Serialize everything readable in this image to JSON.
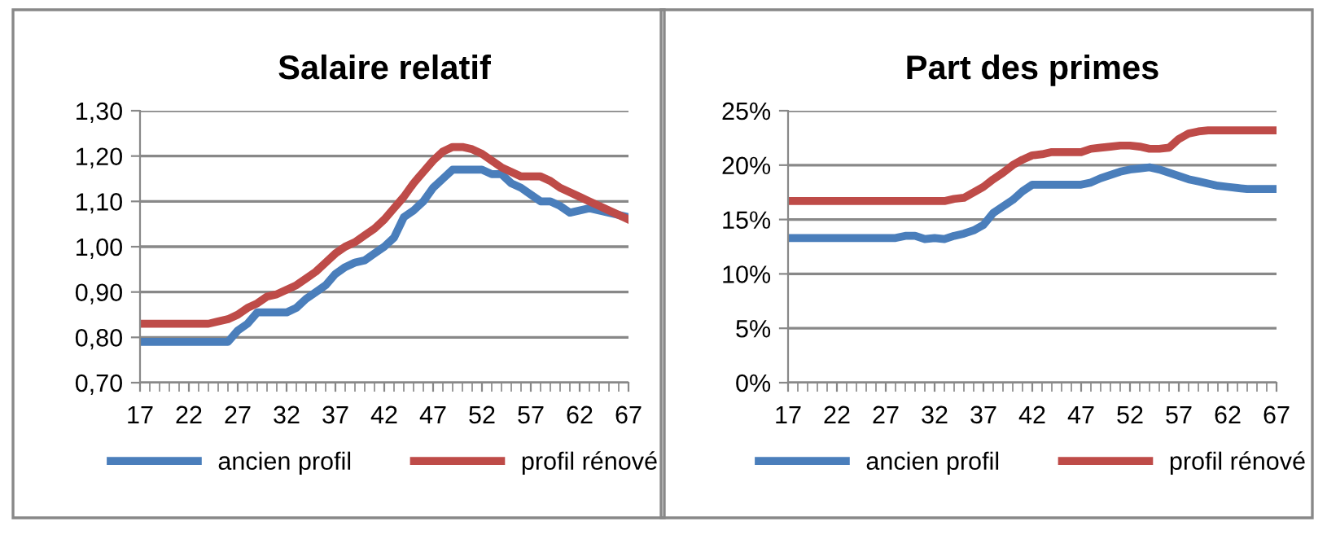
{
  "chart_data": [
    {
      "type": "line",
      "title": "Salaire relatif",
      "legend": "bottom",
      "grid": "y",
      "marker": "none",
      "line_style": "solid",
      "x": [
        17,
        18,
        19,
        20,
        21,
        22,
        23,
        24,
        25,
        26,
        27,
        28,
        29,
        30,
        31,
        32,
        33,
        34,
        35,
        36,
        37,
        38,
        39,
        40,
        41,
        42,
        43,
        44,
        45,
        46,
        47,
        48,
        49,
        50,
        51,
        52,
        53,
        54,
        55,
        56,
        57,
        58,
        59,
        60,
        61,
        62,
        63,
        64,
        65,
        66,
        67
      ],
      "xlim": [
        17,
        67
      ],
      "xticks": [
        17,
        22,
        27,
        32,
        37,
        42,
        47,
        52,
        57,
        62,
        67
      ],
      "ylim": [
        0.7,
        1.3
      ],
      "yticks": [
        {
          "value": 0.7,
          "label": "0,70"
        },
        {
          "value": 0.8,
          "label": "0,80"
        },
        {
          "value": 0.9,
          "label": "0,90"
        },
        {
          "value": 1.0,
          "label": "1,00"
        },
        {
          "value": 1.1,
          "label": "1,10"
        },
        {
          "value": 1.2,
          "label": "1,20"
        },
        {
          "value": 1.3,
          "label": "1,30"
        }
      ],
      "series": [
        {
          "name": "ancien profil",
          "color": "#4a7ebb",
          "values": [
            0.79,
            0.79,
            0.79,
            0.79,
            0.79,
            0.79,
            0.79,
            0.79,
            0.79,
            0.79,
            0.815,
            0.83,
            0.855,
            0.855,
            0.855,
            0.855,
            0.865,
            0.885,
            0.9,
            0.915,
            0.94,
            0.955,
            0.965,
            0.97,
            0.985,
            1.0,
            1.02,
            1.065,
            1.08,
            1.1,
            1.13,
            1.15,
            1.17,
            1.17,
            1.17,
            1.17,
            1.16,
            1.16,
            1.14,
            1.13,
            1.115,
            1.1,
            1.1,
            1.09,
            1.075,
            1.08,
            1.085,
            1.08,
            1.075,
            1.07,
            1.065
          ]
        },
        {
          "name": "profil rénové",
          "color": "#be4b48",
          "values": [
            0.83,
            0.83,
            0.83,
            0.83,
            0.83,
            0.83,
            0.83,
            0.83,
            0.835,
            0.84,
            0.85,
            0.865,
            0.875,
            0.89,
            0.895,
            0.905,
            0.915,
            0.93,
            0.945,
            0.965,
            0.985,
            1.0,
            1.01,
            1.025,
            1.04,
            1.06,
            1.085,
            1.11,
            1.14,
            1.165,
            1.19,
            1.21,
            1.22,
            1.22,
            1.215,
            1.205,
            1.19,
            1.175,
            1.165,
            1.155,
            1.155,
            1.155,
            1.145,
            1.13,
            1.12,
            1.11,
            1.1,
            1.09,
            1.08,
            1.07,
            1.06
          ]
        }
      ]
    },
    {
      "type": "line",
      "title": "Part des primes",
      "legend": "bottom",
      "grid": "y",
      "marker": "none",
      "line_style": "solid",
      "x": [
        17,
        18,
        19,
        20,
        21,
        22,
        23,
        24,
        25,
        26,
        27,
        28,
        29,
        30,
        31,
        32,
        33,
        34,
        35,
        36,
        37,
        38,
        39,
        40,
        41,
        42,
        43,
        44,
        45,
        46,
        47,
        48,
        49,
        50,
        51,
        52,
        53,
        54,
        55,
        56,
        57,
        58,
        59,
        60,
        61,
        62,
        63,
        64,
        65,
        66,
        67
      ],
      "xlim": [
        17,
        67
      ],
      "xticks": [
        17,
        22,
        27,
        32,
        37,
        42,
        47,
        52,
        57,
        62,
        67
      ],
      "ylim": [
        0,
        25
      ],
      "yticks": [
        {
          "value": 0,
          "label": "0%"
        },
        {
          "value": 5,
          "label": "5%"
        },
        {
          "value": 10,
          "label": "10%"
        },
        {
          "value": 15,
          "label": "15%"
        },
        {
          "value": 20,
          "label": "20%"
        },
        {
          "value": 25,
          "label": "25%"
        }
      ],
      "series": [
        {
          "name": "ancien profil",
          "color": "#4a7ebb",
          "values": [
            13.3,
            13.3,
            13.3,
            13.3,
            13.3,
            13.3,
            13.3,
            13.3,
            13.3,
            13.3,
            13.3,
            13.3,
            13.5,
            13.5,
            13.2,
            13.3,
            13.2,
            13.5,
            13.7,
            14.0,
            14.5,
            15.6,
            16.2,
            16.8,
            17.6,
            18.2,
            18.2,
            18.2,
            18.2,
            18.2,
            18.2,
            18.4,
            18.8,
            19.1,
            19.4,
            19.6,
            19.7,
            19.8,
            19.6,
            19.3,
            19.0,
            18.7,
            18.5,
            18.3,
            18.1,
            18.0,
            17.9,
            17.8,
            17.8,
            17.8,
            17.8
          ]
        },
        {
          "name": "profil rénové",
          "color": "#be4b48",
          "values": [
            16.7,
            16.7,
            16.7,
            16.7,
            16.7,
            16.7,
            16.7,
            16.7,
            16.7,
            16.7,
            16.7,
            16.7,
            16.7,
            16.7,
            16.7,
            16.7,
            16.7,
            16.9,
            17.0,
            17.5,
            18.0,
            18.7,
            19.3,
            20.0,
            20.5,
            20.9,
            21.0,
            21.2,
            21.2,
            21.2,
            21.2,
            21.5,
            21.6,
            21.7,
            21.8,
            21.8,
            21.7,
            21.5,
            21.5,
            21.6,
            22.4,
            22.9,
            23.1,
            23.2,
            23.2,
            23.2,
            23.2,
            23.2,
            23.2,
            23.2,
            23.2
          ]
        }
      ]
    }
  ]
}
